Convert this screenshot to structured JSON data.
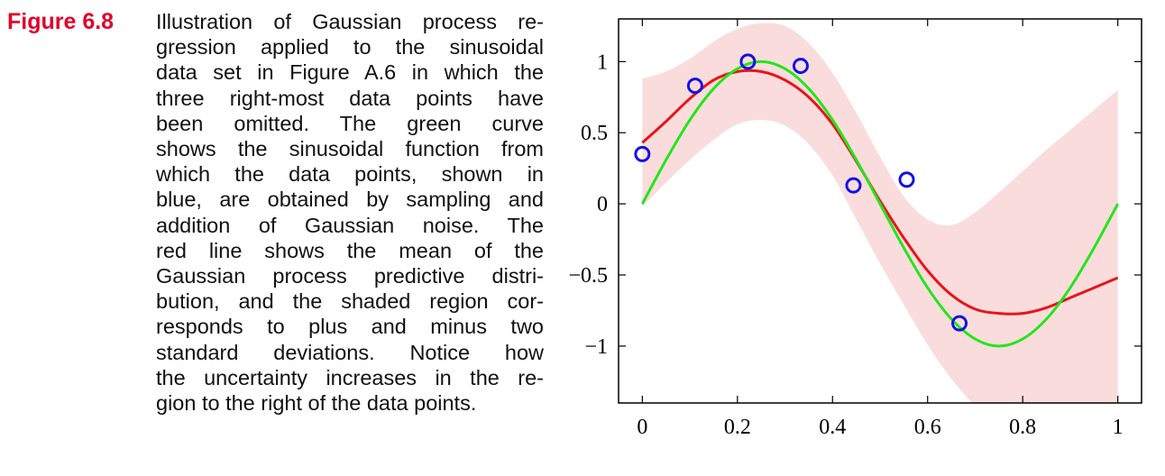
{
  "figure": {
    "label": "Figure 6.8",
    "caption_lines": [
      "Illustration of Gaussian process re-",
      "gression applied to the sinusoidal",
      "data set in Figure A.6 in which the",
      "three right-most data points have",
      "been omitted.  The green curve",
      "shows the sinusoidal function from",
      "which the data points, shown in",
      "blue, are obtained by sampling and",
      "addition of Gaussian noise.  The",
      "red line shows the mean of the",
      "Gaussian process predictive distri-",
      "bution, and the shaded region cor-",
      "responds to plus and minus two",
      "standard deviations.  Notice how",
      "the uncertainty increases in the re-",
      "gion to the right of the data points."
    ]
  },
  "colors": {
    "label": "#e2002b",
    "band": "#fbdcdc",
    "mean": "#e8141b",
    "truth": "#22e61c",
    "points": "#1212e6",
    "axes": "#000000"
  },
  "chart_data": {
    "type": "line",
    "title": "",
    "xlabel": "",
    "ylabel": "",
    "xlim": [
      -0.05,
      1.05
    ],
    "ylim": [
      -1.4,
      1.3
    ],
    "grid": false,
    "x_ticks": [
      0,
      0.2,
      0.4,
      0.6,
      0.8,
      1
    ],
    "x_tick_labels": [
      "0",
      "0.2",
      "0.4",
      "0.6",
      "0.8",
      "1"
    ],
    "y_ticks": [
      1,
      0.5,
      0,
      -0.5,
      -1
    ],
    "y_tick_labels": [
      "1",
      "0.5",
      "0",
      "−0.5",
      "−1"
    ],
    "series": [
      {
        "kind": "band",
        "x": [
          0,
          0.05,
          0.1,
          0.15,
          0.2,
          0.25,
          0.3,
          0.35,
          0.4,
          0.45,
          0.5,
          0.55,
          0.6,
          0.65,
          0.7,
          0.75,
          0.8,
          0.85,
          0.9,
          0.95,
          1.0
        ],
        "upper": [
          0.88,
          0.93,
          1.02,
          1.14,
          1.23,
          1.27,
          1.25,
          1.13,
          0.92,
          0.64,
          0.33,
          0.05,
          -0.11,
          -0.15,
          -0.06,
          0.08,
          0.23,
          0.38,
          0.52,
          0.66,
          0.8
        ],
        "lower": [
          -0.02,
          0.15,
          0.31,
          0.45,
          0.56,
          0.59,
          0.55,
          0.42,
          0.2,
          -0.11,
          -0.42,
          -0.71,
          -0.99,
          -1.23,
          -1.42,
          -1.55,
          -1.67,
          -1.77,
          -1.84,
          -1.9,
          -1.95
        ]
      },
      {
        "kind": "line",
        "x": [
          0,
          0.05,
          0.1,
          0.15,
          0.2,
          0.25,
          0.3,
          0.35,
          0.4,
          0.45,
          0.5,
          0.55,
          0.6,
          0.65,
          0.7,
          0.75,
          0.8,
          0.85,
          0.9,
          0.95,
          1.0
        ],
        "y": [
          0.43,
          0.58,
          0.74,
          0.87,
          0.93,
          0.93,
          0.87,
          0.75,
          0.56,
          0.3,
          0.02,
          -0.24,
          -0.47,
          -0.64,
          -0.74,
          -0.77,
          -0.77,
          -0.73,
          -0.66,
          -0.59,
          -0.52
        ]
      },
      {
        "kind": "line",
        "x": [
          0,
          0.05,
          0.1,
          0.15,
          0.2,
          0.25,
          0.3,
          0.35,
          0.4,
          0.45,
          0.5,
          0.55,
          0.6,
          0.65,
          0.7,
          0.75,
          0.8,
          0.85,
          0.9,
          0.95,
          1.0
        ],
        "y": [
          0.0,
          0.31,
          0.59,
          0.81,
          0.95,
          1.0,
          0.95,
          0.81,
          0.59,
          0.31,
          0.0,
          -0.31,
          -0.59,
          -0.81,
          -0.95,
          -1.0,
          -0.95,
          -0.81,
          -0.59,
          -0.31,
          0.0
        ]
      },
      {
        "kind": "scatter",
        "x": [
          0.0,
          0.111,
          0.222,
          0.333,
          0.444,
          0.556,
          0.667
        ],
        "y": [
          0.35,
          0.83,
          1.0,
          0.97,
          0.13,
          0.17,
          -0.84
        ]
      }
    ]
  }
}
